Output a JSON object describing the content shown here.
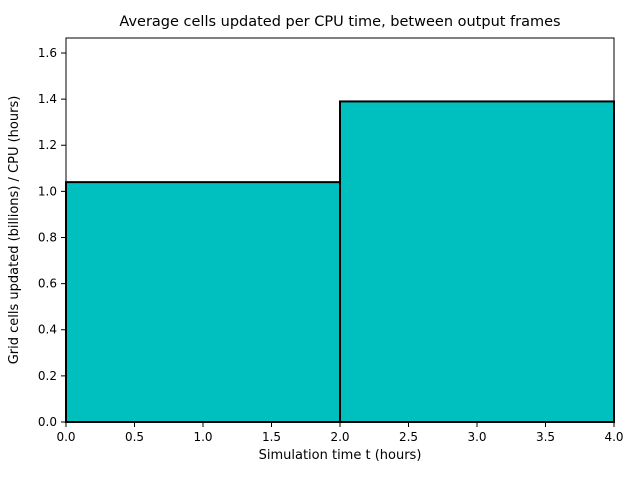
{
  "chart_data": {
    "type": "bar",
    "title": "Average cells updated per CPU time, between output frames",
    "xlabel": "Simulation time t (hours)",
    "ylabel": "Grid cells updated (billions) / CPU (hours)",
    "segments": [
      {
        "x_start": 0.0,
        "x_end": 2.0,
        "value": 1.04
      },
      {
        "x_start": 2.0,
        "x_end": 4.0,
        "value": 1.39
      }
    ],
    "xlim": [
      0.0,
      4.0
    ],
    "ylim": [
      0.0,
      1.665
    ],
    "xticks": [
      0.0,
      0.5,
      1.0,
      1.5,
      2.0,
      2.5,
      3.0,
      3.5,
      4.0
    ],
    "yticks": [
      0.0,
      0.2,
      0.4,
      0.6,
      0.8,
      1.0,
      1.2,
      1.4,
      1.6
    ],
    "grid": false,
    "legend": null,
    "colors": {
      "bar_fill": "#00bfbf",
      "bar_edge": "#000000",
      "spine": "#000000",
      "background": "#ffffff"
    }
  }
}
